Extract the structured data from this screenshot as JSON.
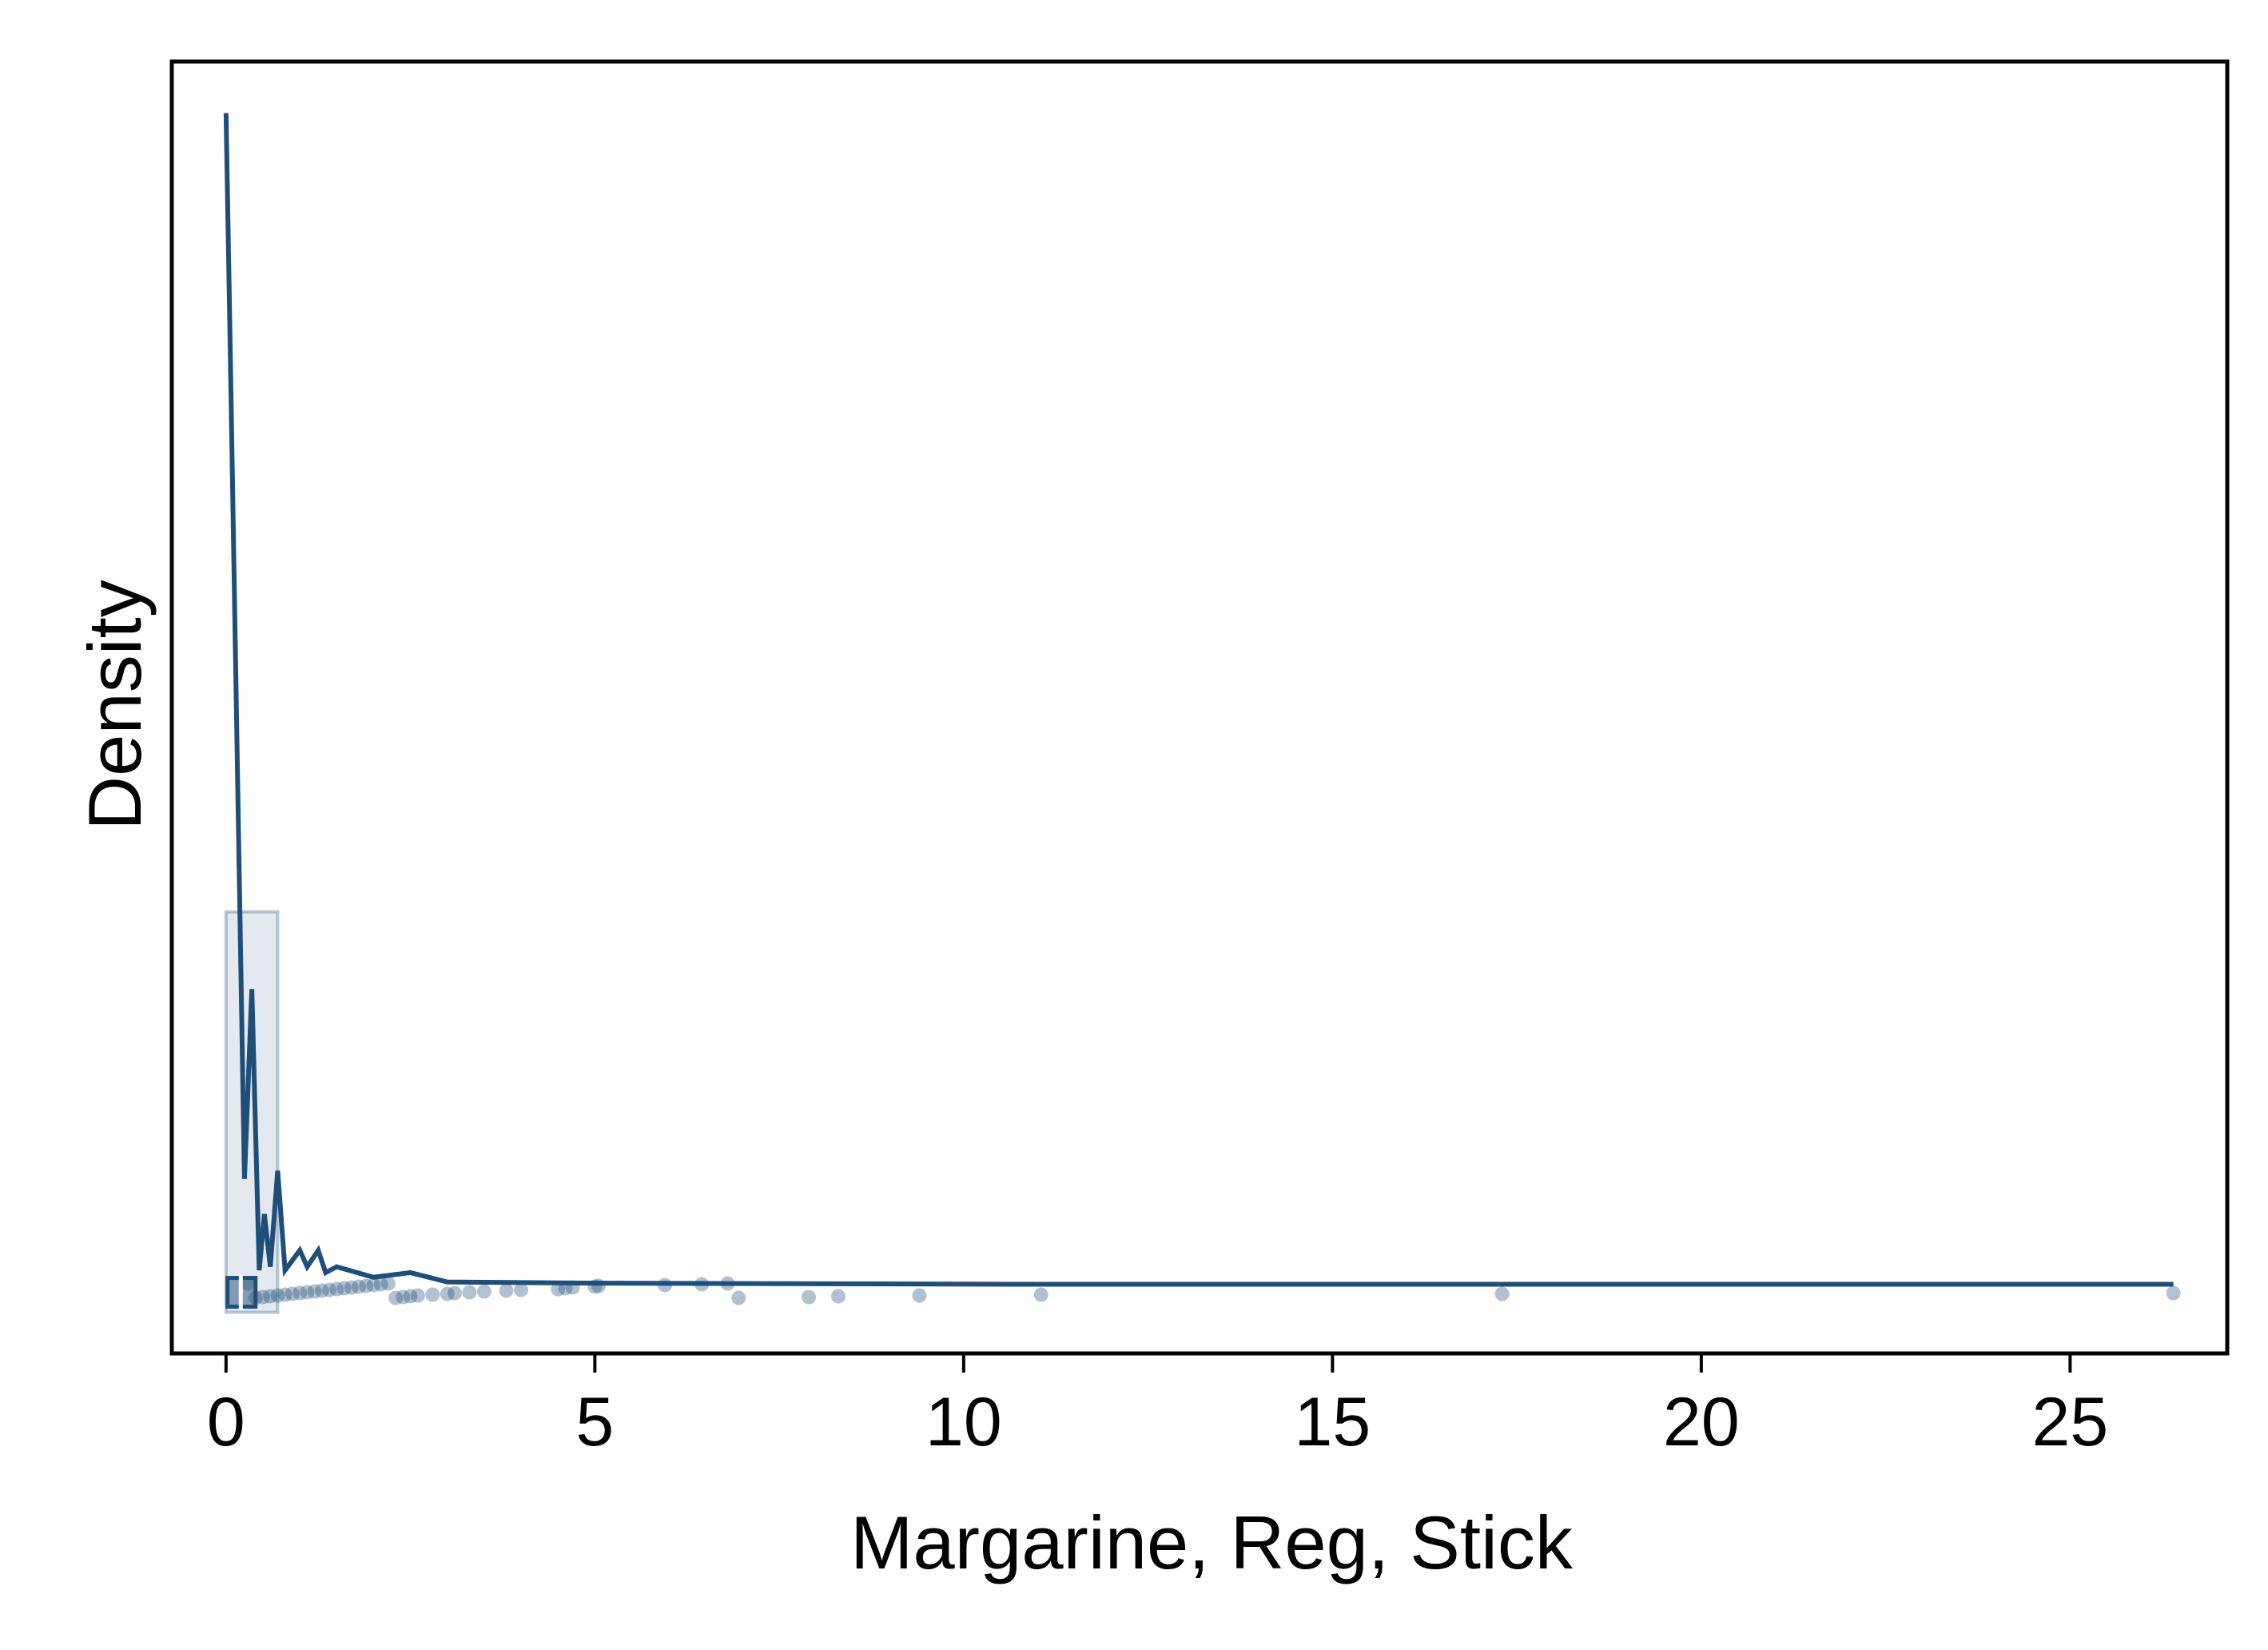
{
  "chart_data": {
    "type": "density",
    "xlabel": "Margarine, Reg, Stick",
    "ylabel": "Density",
    "xlim": [
      -0.735,
      27.13
    ],
    "ylim": [
      -0.059,
      1.044
    ],
    "xticks": [
      0,
      5,
      10,
      15,
      20,
      25
    ],
    "color": "#1f4e79",
    "density": {
      "x": [
        0,
        0.05,
        0.25,
        0.35,
        0.45,
        0.52,
        0.6,
        0.7,
        0.8,
        1.0,
        1.1,
        1.25,
        1.35,
        1.5,
        2.0,
        2.5,
        3.0,
        5.0,
        11.0,
        26.4
      ],
      "y": [
        1.0,
        0.823,
        0.09,
        0.252,
        0.012,
        0.06,
        0.015,
        0.097,
        0.012,
        0.029,
        0.015,
        0.029,
        0.01,
        0.015,
        0.006,
        0.01,
        0.002,
        0.001,
        0.0,
        0.0
      ]
    },
    "bins": [
      0,
      0.7
    ],
    "counts": [
      0.318
    ],
    "box": {
      "q1": 0.02,
      "median": 0.2,
      "q3": 0.4
    },
    "points": [
      0.3,
      0.4,
      0.5,
      0.6,
      0.7,
      0.8,
      0.9,
      1.0,
      1.1,
      1.2,
      1.3,
      1.4,
      1.5,
      1.6,
      1.7,
      1.8,
      1.9,
      2.0,
      2.1,
      2.2,
      2.3,
      2.4,
      2.5,
      2.6,
      2.8,
      3.0,
      3.1,
      3.3,
      3.5,
      3.8,
      4.0,
      4.5,
      4.6,
      4.7,
      5.0,
      5.05,
      5.95,
      6.45,
      6.8,
      6.95,
      7.9,
      8.3,
      9.4,
      11.05,
      17.3,
      26.4
    ]
  }
}
